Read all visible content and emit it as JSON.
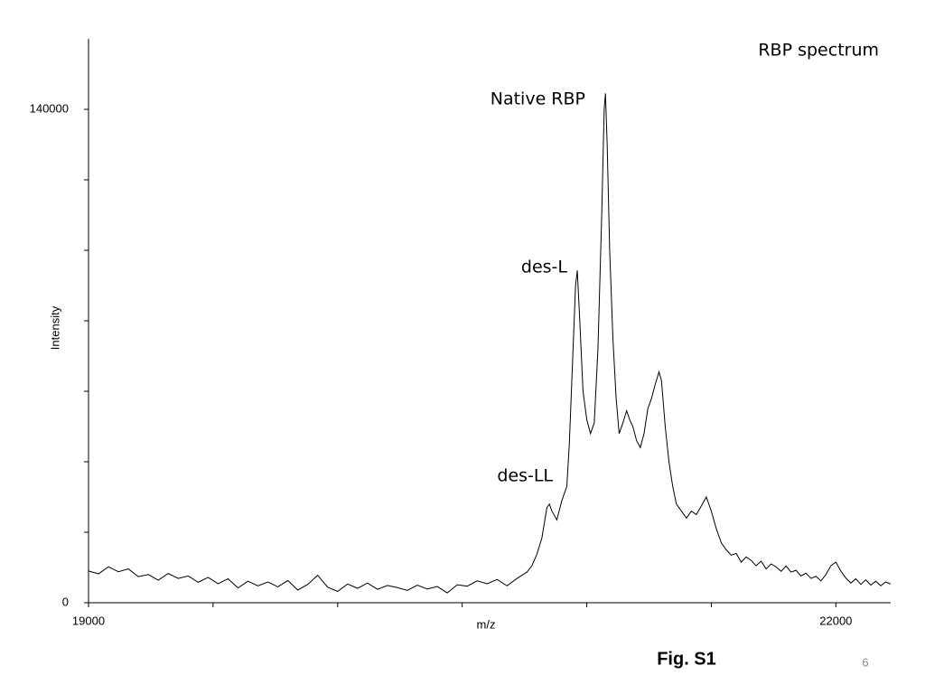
{
  "chart_data": {
    "type": "line",
    "title": "RBP spectrum",
    "x_label": "m/z",
    "y_label": "Intensity",
    "caption": "Fig. S1",
    "page_number": "6",
    "annotations": [
      "Native RBP",
      "des-L",
      "des-LL"
    ],
    "color": "#000000",
    "xlim": [
      19000,
      22220
    ],
    "ylim": [
      0,
      160000
    ],
    "xticks": [
      19000,
      22000
    ],
    "yticks": [
      0,
      140000
    ],
    "x_minor_ticks": [
      19500,
      20000,
      20500,
      21000,
      21500
    ],
    "y_minor_ticks": [
      20000,
      40000,
      60000,
      80000,
      100000,
      120000
    ],
    "x": [
      19000,
      19040,
      19080,
      19120,
      19160,
      19200,
      19240,
      19280,
      19320,
      19360,
      19400,
      19440,
      19480,
      19520,
      19560,
      19600,
      19640,
      19680,
      19720,
      19760,
      19800,
      19840,
      19880,
      19920,
      19960,
      20000,
      20040,
      20080,
      20120,
      20160,
      20200,
      20240,
      20280,
      20320,
      20360,
      20400,
      20440,
      20480,
      20520,
      20560,
      20600,
      20640,
      20680,
      20720,
      20760,
      20780,
      20800,
      20820,
      20840,
      20850,
      20860,
      20880,
      20900,
      20920,
      20930,
      20945,
      20955,
      20962,
      20972,
      20985,
      21000,
      21015,
      21030,
      21045,
      21060,
      21070,
      21075,
      21082,
      21092,
      21105,
      21118,
      21130,
      21145,
      21160,
      21172,
      21185,
      21200,
      21215,
      21230,
      21245,
      21260,
      21275,
      21290,
      21300,
      21315,
      21330,
      21345,
      21360,
      21380,
      21400,
      21420,
      21440,
      21460,
      21480,
      21500,
      21520,
      21540,
      21560,
      21580,
      21600,
      21620,
      21640,
      21660,
      21680,
      21700,
      21720,
      21740,
      21760,
      21780,
      21800,
      21820,
      21840,
      21860,
      21880,
      21900,
      21920,
      21940,
      21960,
      21980,
      22000,
      22020,
      22040,
      22060,
      22080,
      22100,
      22120,
      22140,
      22160,
      22180,
      22200,
      22220
    ],
    "values": [
      9000,
      8200,
      10200,
      8800,
      9600,
      7400,
      8000,
      6400,
      8300,
      6900,
      7600,
      5800,
      7200,
      5400,
      6800,
      4200,
      6100,
      4800,
      5900,
      4500,
      6300,
      3600,
      5200,
      7800,
      4400,
      3200,
      5300,
      4100,
      5600,
      3800,
      4900,
      4300,
      3500,
      5000,
      3900,
      4600,
      2800,
      5100,
      4700,
      6200,
      5400,
      6600,
      4800,
      6900,
      8700,
      10500,
      13800,
      18400,
      27000,
      28000,
      26000,
      23500,
      29000,
      33000,
      45000,
      72000,
      90000,
      94300,
      80000,
      60000,
      52000,
      48000,
      51000,
      72000,
      110000,
      140000,
      144500,
      130000,
      100000,
      75000,
      58000,
      48000,
      51000,
      54500,
      52000,
      50000,
      46000,
      44000,
      48000,
      55000,
      58000,
      62000,
      65500,
      63000,
      50000,
      40000,
      33000,
      28000,
      26000,
      24000,
      26000,
      25000,
      27500,
      30000,
      26000,
      21000,
      17000,
      15000,
      13500,
      14000,
      11500,
      13000,
      12000,
      10500,
      11800,
      9600,
      11000,
      10200,
      8900,
      10400,
      8700,
      9200,
      7600,
      8400,
      6900,
      7500,
      6200,
      8000,
      10500,
      11500,
      9000,
      7000,
      5600,
      6800,
      5200,
      6500,
      5000,
      6100,
      4800,
      5900,
      5300
    ]
  }
}
